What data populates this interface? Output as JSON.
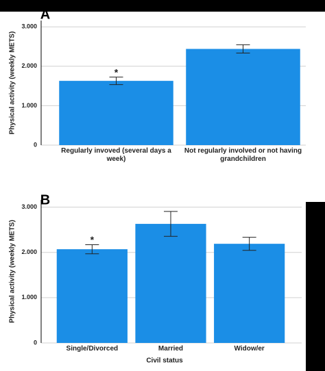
{
  "chart_data": [
    {
      "type": "bar",
      "title": "A",
      "ylabel": "Physical activity (weekly METS)",
      "categories": [
        "Regularly invoved (several days a week)",
        "Not regularly involved or not having grandchildren"
      ],
      "values": [
        1630,
        2440
      ],
      "errors": [
        95,
        105
      ],
      "annotations": [
        "*",
        null
      ],
      "color": "#1b8ee6",
      "ylim": [
        0,
        3160
      ],
      "yticks": [
        0,
        {
          "value": 1000,
          "label": "1.000"
        },
        {
          "value": 2000,
          "label": "2.000"
        },
        {
          "value": 3000,
          "label": "3.000"
        }
      ],
      "grid": true
    },
    {
      "type": "bar",
      "title": "B",
      "ylabel": "Physical activity (weekly METS)",
      "xlabel": "Civil status",
      "categories": [
        "Single/Divorced",
        "Married",
        "Widow/er"
      ],
      "values": [
        2070,
        2630,
        2190
      ],
      "errors": [
        100,
        275,
        145
      ],
      "annotations": [
        "*",
        null,
        null
      ],
      "color": "#1b8ee6",
      "ylim": [
        0,
        3160
      ],
      "yticks": [
        0,
        {
          "value": 1000,
          "label": "1.000"
        },
        {
          "value": 2000,
          "label": "2.000"
        },
        {
          "value": 3000,
          "label": "3.000"
        }
      ],
      "grid": true
    }
  ]
}
